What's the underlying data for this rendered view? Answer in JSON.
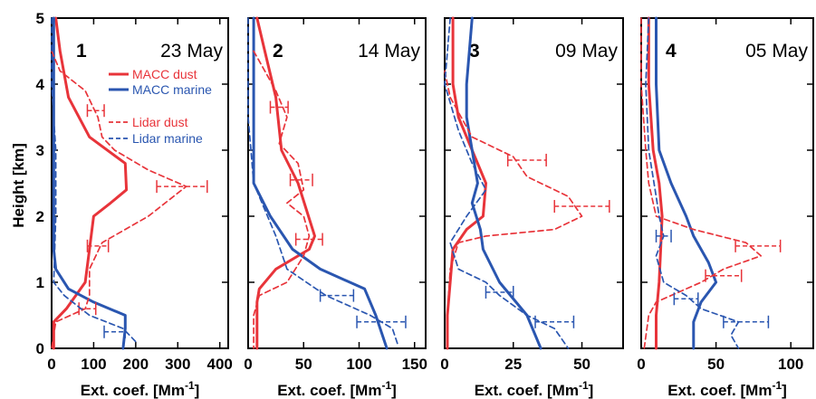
{
  "colors": {
    "dust": "#e8343a",
    "marine": "#2a56b0"
  },
  "y_axis": {
    "label": "Height [km]",
    "ylim": [
      0,
      5
    ],
    "ticks": [
      "0",
      "1",
      "2",
      "3",
      "4",
      "5"
    ]
  },
  "legend": {
    "macc_dust": "MACC dust",
    "macc_marine": "MACC marine",
    "lidar_dust": "Lidar dust",
    "lidar_marine": "Lidar marine"
  },
  "chart_data": [
    {
      "type": "line",
      "panel": "1",
      "date": "23 May",
      "xlabel": "Ext. coef. [Mm",
      "xlabel_sup": "-1",
      "xlabel_end": "]",
      "xlim": [
        0,
        420
      ],
      "xticks": [
        0,
        100,
        200,
        300,
        400
      ],
      "series": [
        {
          "name": "MACC dust",
          "style": "solid",
          "color": "dust",
          "points": [
            [
              10,
              5.0
            ],
            [
              20,
              4.5
            ],
            [
              40,
              3.8
            ],
            [
              90,
              3.2
            ],
            [
              175,
              2.8
            ],
            [
              178,
              2.4
            ],
            [
              140,
              2.2
            ],
            [
              100,
              2.0
            ],
            [
              90,
              1.5
            ],
            [
              80,
              1.0
            ],
            [
              35,
              0.6
            ],
            [
              5,
              0.4
            ],
            [
              5,
              0
            ]
          ]
        },
        {
          "name": "MACC marine",
          "style": "solid",
          "color": "marine",
          "points": [
            [
              5,
              5.0
            ],
            [
              5,
              1.5
            ],
            [
              10,
              1.2
            ],
            [
              40,
              0.9
            ],
            [
              100,
              0.7
            ],
            [
              175,
              0.5
            ],
            [
              175,
              0.3
            ],
            [
              170,
              0
            ]
          ]
        },
        {
          "name": "Lidar dust",
          "style": "dashed",
          "color": "dust",
          "points": [
            [
              0,
              4.5
            ],
            [
              20,
              4.2
            ],
            [
              80,
              3.9
            ],
            [
              110,
              3.5
            ],
            [
              120,
              3.2
            ],
            [
              150,
              3.0
            ],
            [
              230,
              2.7
            ],
            [
              320,
              2.45
            ],
            [
              230,
              2.0
            ],
            [
              120,
              1.6
            ],
            [
              90,
              1.2
            ],
            [
              90,
              0.8
            ],
            [
              80,
              0.6
            ],
            [
              10,
              0.4
            ],
            [
              0,
              0
            ]
          ],
          "errorbars": [
            [
              105,
              3.6,
              20
            ],
            [
              310,
              2.45,
              60
            ],
            [
              110,
              1.55,
              25
            ],
            [
              85,
              0.6,
              20
            ]
          ]
        },
        {
          "name": "Lidar marine",
          "style": "dashed",
          "color": "marine",
          "points": [
            [
              0,
              5.0
            ],
            [
              0,
              4.0
            ],
            [
              10,
              3.0
            ],
            [
              10,
              2.0
            ],
            [
              5,
              1.0
            ],
            [
              30,
              0.8
            ],
            [
              90,
              0.5
            ],
            [
              170,
              0.3
            ],
            [
              200,
              0.1
            ]
          ],
          "errorbars": [
            [
              150,
              0.25,
              25
            ]
          ]
        }
      ]
    },
    {
      "type": "line",
      "panel": "2",
      "date": "14 May",
      "xlabel": "Ext. coef. [Mm",
      "xlabel_sup": "-1",
      "xlabel_end": "]",
      "xlim": [
        0,
        160
      ],
      "xticks": [
        0,
        50,
        100,
        150
      ],
      "series": [
        {
          "name": "MACC dust",
          "style": "solid",
          "color": "dust",
          "points": [
            [
              8,
              5.0
            ],
            [
              15,
              4.5
            ],
            [
              25,
              3.8
            ],
            [
              30,
              3.0
            ],
            [
              45,
              2.5
            ],
            [
              60,
              1.7
            ],
            [
              55,
              1.5
            ],
            [
              25,
              1.2
            ],
            [
              10,
              0.9
            ],
            [
              8,
              0.7
            ],
            [
              8,
              0
            ]
          ]
        },
        {
          "name": "MACC marine",
          "style": "solid",
          "color": "marine",
          "points": [
            [
              5,
              5.0
            ],
            [
              5,
              2.5
            ],
            [
              20,
              2.0
            ],
            [
              40,
              1.5
            ],
            [
              65,
              1.2
            ],
            [
              105,
              0.9
            ],
            [
              115,
              0.5
            ],
            [
              125,
              0
            ]
          ]
        },
        {
          "name": "Lidar dust",
          "style": "dashed",
          "color": "dust",
          "points": [
            [
              5,
              4.5
            ],
            [
              15,
              4.2
            ],
            [
              25,
              3.9
            ],
            [
              35,
              3.5
            ],
            [
              28,
              3.1
            ],
            [
              45,
              2.8
            ],
            [
              50,
              2.4
            ],
            [
              35,
              2.2
            ],
            [
              50,
              2.0
            ],
            [
              55,
              1.7
            ],
            [
              50,
              1.4
            ],
            [
              35,
              1.0
            ],
            [
              10,
              0.8
            ],
            [
              5,
              0.5
            ],
            [
              5,
              0
            ]
          ],
          "errorbars": [
            [
              28,
              3.65,
              8
            ],
            [
              48,
              2.55,
              10
            ],
            [
              55,
              1.65,
              12
            ]
          ]
        },
        {
          "name": "Lidar marine",
          "style": "dashed",
          "color": "marine",
          "points": [
            [
              0,
              5.0
            ],
            [
              0,
              3.5
            ],
            [
              5,
              2.5
            ],
            [
              25,
              1.7
            ],
            [
              35,
              1.2
            ],
            [
              70,
              0.8
            ],
            [
              110,
              0.5
            ],
            [
              130,
              0.3
            ],
            [
              135,
              0.05
            ]
          ],
          "errorbars": [
            [
              80,
              0.8,
              15
            ],
            [
              120,
              0.4,
              22
            ]
          ]
        }
      ]
    },
    {
      "type": "line",
      "panel": "3",
      "date": "09 May",
      "xlabel": "Ext. coef. [Mm",
      "xlabel_sup": "-1",
      "xlabel_end": "]",
      "xlim": [
        0,
        65
      ],
      "xticks": [
        0,
        25,
        50
      ],
      "series": [
        {
          "name": "MACC dust",
          "style": "solid",
          "color": "dust",
          "points": [
            [
              3,
              5.0
            ],
            [
              3,
              4.0
            ],
            [
              5,
              3.5
            ],
            [
              10,
              3.0
            ],
            [
              15,
              2.5
            ],
            [
              14,
              2.0
            ],
            [
              8,
              1.8
            ],
            [
              3,
              1.5
            ],
            [
              2,
              1.0
            ],
            [
              1,
              0.5
            ],
            [
              1,
              0
            ]
          ]
        },
        {
          "name": "MACC marine",
          "style": "solid",
          "color": "marine",
          "points": [
            [
              10,
              5.0
            ],
            [
              8,
              4.0
            ],
            [
              8,
              3.5
            ],
            [
              10,
              3.0
            ],
            [
              12,
              2.5
            ],
            [
              10,
              2.2
            ],
            [
              13,
              1.8
            ],
            [
              14,
              1.5
            ],
            [
              20,
              1.0
            ],
            [
              30,
              0.5
            ],
            [
              35,
              0
            ]
          ]
        },
        {
          "name": "Lidar dust",
          "style": "dashed",
          "color": "dust",
          "points": [
            [
              0,
              4.2
            ],
            [
              2,
              3.8
            ],
            [
              10,
              3.2
            ],
            [
              25,
              2.9
            ],
            [
              30,
              2.6
            ],
            [
              45,
              2.3
            ],
            [
              50,
              2.0
            ],
            [
              40,
              1.8
            ],
            [
              15,
              1.7
            ],
            [
              5,
              1.6
            ],
            [
              2,
              1.2
            ],
            [
              1,
              0.5
            ],
            [
              1,
              0
            ]
          ],
          "errorbars": [
            [
              30,
              2.85,
              7
            ],
            [
              50,
              2.15,
              10
            ]
          ]
        },
        {
          "name": "Lidar marine",
          "style": "dashed",
          "color": "marine",
          "points": [
            [
              2,
              5.0
            ],
            [
              0,
              4.0
            ],
            [
              5,
              3.3
            ],
            [
              10,
              2.8
            ],
            [
              15,
              2.4
            ],
            [
              8,
              2.0
            ],
            [
              2,
              1.6
            ],
            [
              5,
              1.2
            ],
            [
              15,
              1.0
            ],
            [
              20,
              0.8
            ],
            [
              30,
              0.5
            ],
            [
              40,
              0.3
            ],
            [
              45,
              0
            ]
          ],
          "errorbars": [
            [
              20,
              0.85,
              5
            ],
            [
              40,
              0.4,
              7
            ]
          ]
        }
      ]
    },
    {
      "type": "line",
      "panel": "4",
      "date": "05 May",
      "xlabel": "Ext. coef. [Mm",
      "xlabel_sup": "-1",
      "xlabel_end": "]",
      "xlim": [
        0,
        115
      ],
      "xticks": [
        0,
        50,
        100
      ],
      "series": [
        {
          "name": "MACC dust",
          "style": "solid",
          "color": "dust",
          "points": [
            [
              5,
              5.0
            ],
            [
              5,
              4.0
            ],
            [
              8,
              3.0
            ],
            [
              12,
              2.5
            ],
            [
              14,
              2.0
            ],
            [
              13,
              1.5
            ],
            [
              12,
              1.0
            ],
            [
              10,
              0.5
            ],
            [
              10,
              0
            ]
          ]
        },
        {
          "name": "MACC marine",
          "style": "solid",
          "color": "marine",
          "points": [
            [
              10,
              5.0
            ],
            [
              10,
              4.0
            ],
            [
              12,
              3.0
            ],
            [
              20,
              2.5
            ],
            [
              30,
              2.0
            ],
            [
              35,
              1.7
            ],
            [
              45,
              1.3
            ],
            [
              50,
              1.0
            ],
            [
              40,
              0.7
            ],
            [
              35,
              0.4
            ],
            [
              35,
              0
            ]
          ]
        },
        {
          "name": "Lidar dust",
          "style": "dashed",
          "color": "dust",
          "points": [
            [
              0,
              5.0
            ],
            [
              0,
              4.0
            ],
            [
              3,
              3.0
            ],
            [
              5,
              2.5
            ],
            [
              10,
              2.0
            ],
            [
              35,
              1.8
            ],
            [
              70,
              1.6
            ],
            [
              80,
              1.4
            ],
            [
              55,
              1.2
            ],
            [
              40,
              1.0
            ],
            [
              10,
              0.7
            ],
            [
              5,
              0.5
            ],
            [
              2,
              0
            ]
          ],
          "errorbars": [
            [
              78,
              1.55,
              15
            ],
            [
              55,
              1.1,
              12
            ]
          ]
        },
        {
          "name": "Lidar marine",
          "style": "dashed",
          "color": "marine",
          "points": [
            [
              5,
              5.0
            ],
            [
              3,
              4.0
            ],
            [
              5,
              3.0
            ],
            [
              10,
              2.3
            ],
            [
              12,
              2.0
            ],
            [
              15,
              1.7
            ],
            [
              10,
              1.4
            ],
            [
              15,
              1.0
            ],
            [
              30,
              0.8
            ],
            [
              40,
              0.6
            ],
            [
              65,
              0.4
            ],
            [
              60,
              0.2
            ],
            [
              65,
              0
            ]
          ],
          "errorbars": [
            [
              15,
              1.7,
              5
            ],
            [
              30,
              0.75,
              8
            ],
            [
              70,
              0.4,
              15
            ]
          ]
        }
      ]
    }
  ]
}
